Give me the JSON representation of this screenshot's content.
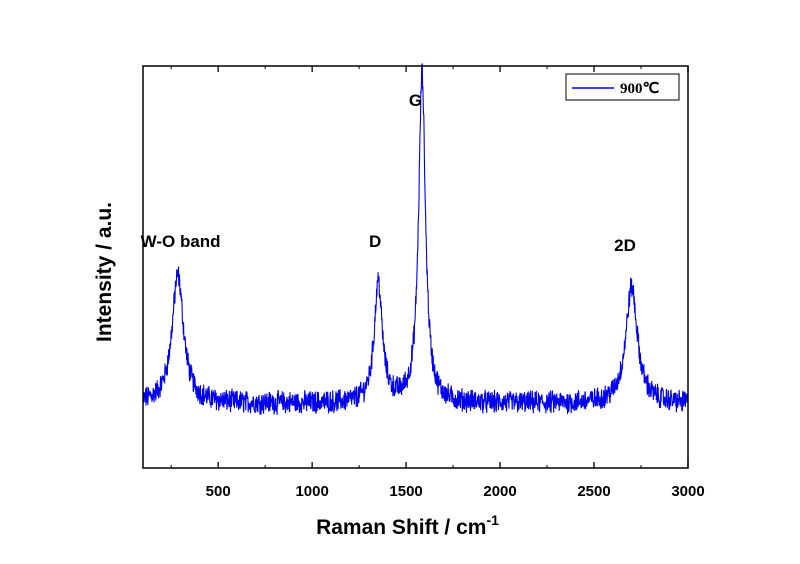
{
  "chart_data": {
    "type": "line",
    "title": "",
    "xlabel": "Raman Shift / cm",
    "xlabel_superscript": "-1",
    "ylabel": "Intensity / a.u.",
    "xlim": [
      100,
      3000
    ],
    "ylim": [
      0,
      1
    ],
    "x_ticks": [
      500,
      1000,
      1500,
      2000,
      2500,
      3000
    ],
    "x_tick_labels": [
      "500",
      "1000",
      "1500",
      "2000",
      "2500",
      "3000"
    ],
    "y_ticks_shown": false,
    "grid": false,
    "legend": {
      "placement": "top-right",
      "entries": [
        "900℃"
      ]
    },
    "series": [
      {
        "name": "900℃",
        "color": "#0000ee",
        "baseline": 0.16,
        "noise_amplitude": 0.025,
        "peaks": [
          {
            "label": "W-O band",
            "center": 285,
            "height": 0.32,
            "width": 55
          },
          {
            "label": "D",
            "center": 1352,
            "height": 0.3,
            "width": 38
          },
          {
            "label": "G",
            "center": 1585,
            "height": 0.82,
            "width": 32
          },
          {
            "label": "2D",
            "center": 2700,
            "height": 0.29,
            "width": 55
          }
        ]
      }
    ],
    "annotations": [
      {
        "text": "W-O band",
        "x": 300,
        "y": 0.55
      },
      {
        "text": "D",
        "x": 1335,
        "y": 0.55
      },
      {
        "text": "G",
        "x": 1550,
        "y": 0.9
      },
      {
        "text": "2D",
        "x": 2665,
        "y": 0.54
      }
    ]
  }
}
